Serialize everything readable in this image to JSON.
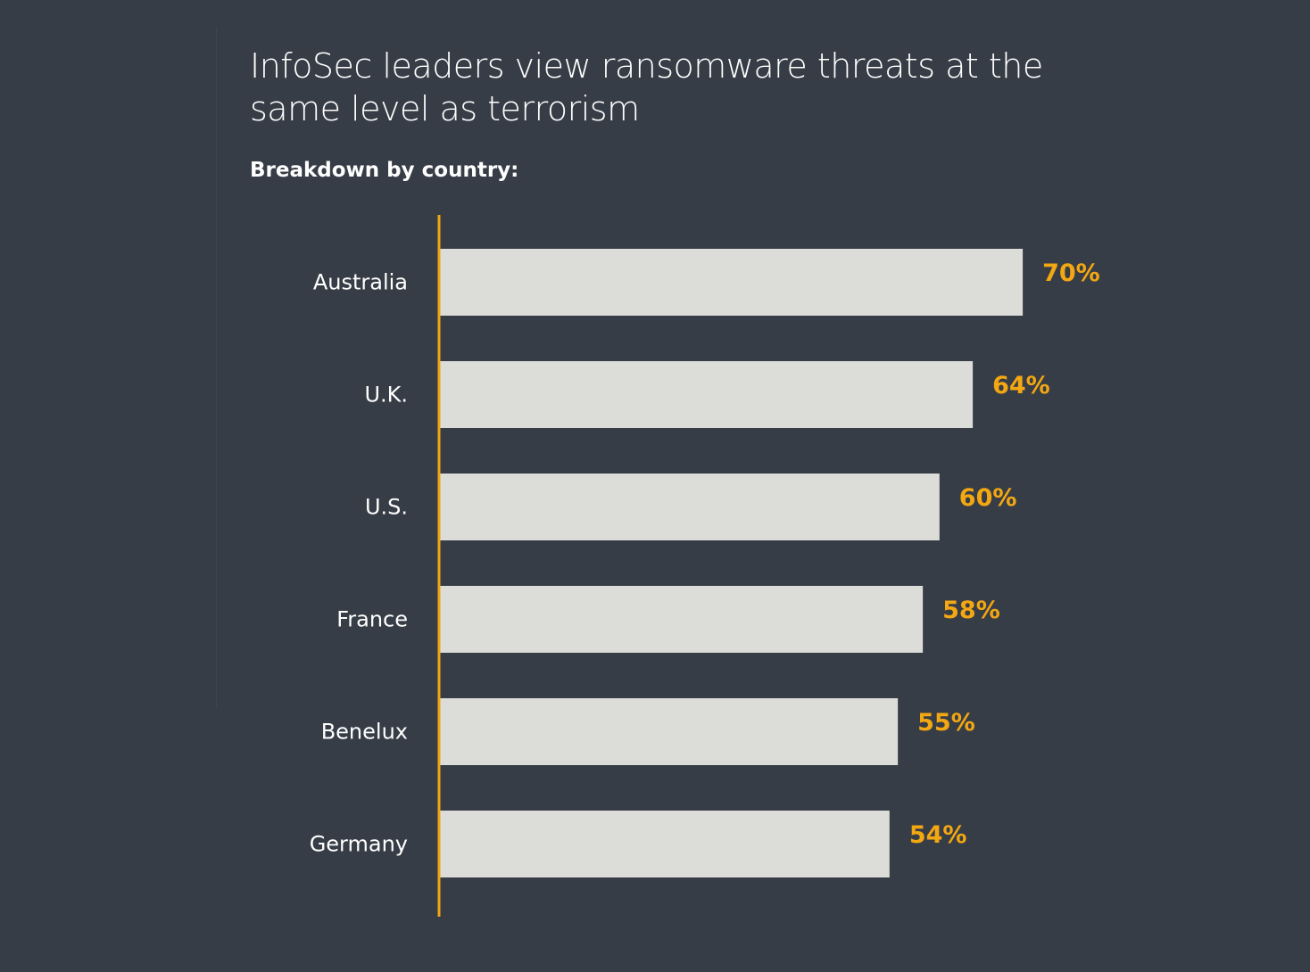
{
  "title": "InfoSec leaders view ransomware threats at the same level as terrorism",
  "subtitle": "Breakdown by country:",
  "colors": {
    "background": "#373d46",
    "bar": "#dcdcd8",
    "accent": "#f3a712",
    "text": "#ffffff"
  },
  "chart_data": {
    "type": "bar",
    "orientation": "horizontal",
    "title": "InfoSec leaders view ransomware threats at the same level as terrorism",
    "subtitle": "Breakdown by country:",
    "categories": [
      "Australia",
      "U.K.",
      "U.S.",
      "France",
      "Benelux",
      "Germany"
    ],
    "values": [
      70,
      64,
      60,
      58,
      55,
      54
    ],
    "value_labels": [
      "70%",
      "64%",
      "60%",
      "58%",
      "55%",
      "54%"
    ],
    "unit": "%",
    "xlim": [
      0,
      100
    ],
    "xlabel": "",
    "ylabel": "",
    "grid": false,
    "legend": "none"
  }
}
